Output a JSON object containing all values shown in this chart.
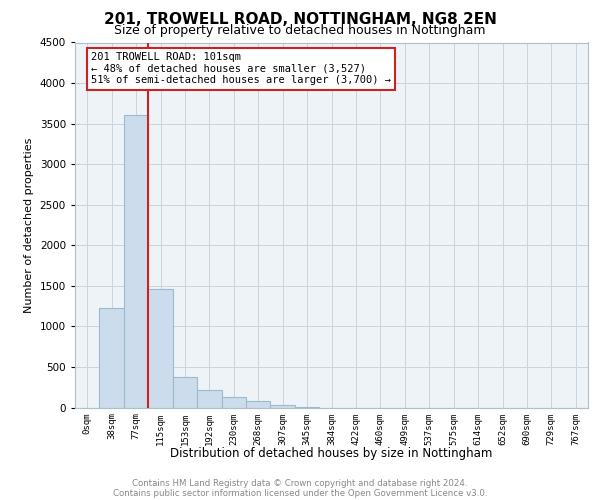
{
  "title_line1": "201, TROWELL ROAD, NOTTINGHAM, NG8 2EN",
  "title_line2": "Size of property relative to detached houses in Nottingham",
  "xlabel": "Distribution of detached houses by size in Nottingham",
  "ylabel": "Number of detached properties",
  "categories": [
    "0sqm",
    "38sqm",
    "77sqm",
    "115sqm",
    "153sqm",
    "192sqm",
    "230sqm",
    "268sqm",
    "307sqm",
    "345sqm",
    "384sqm",
    "422sqm",
    "460sqm",
    "499sqm",
    "537sqm",
    "575sqm",
    "614sqm",
    "652sqm",
    "690sqm",
    "729sqm",
    "767sqm"
  ],
  "values": [
    0,
    1230,
    3600,
    1460,
    380,
    220,
    130,
    80,
    30,
    12,
    0,
    0,
    0,
    0,
    0,
    0,
    0,
    0,
    0,
    0,
    0
  ],
  "bar_color": "#ccdcec",
  "bar_edge_color": "#99bbcc",
  "vline_x": 2.5,
  "vline_color": "#cc2222",
  "annotation_text": "201 TROWELL ROAD: 101sqm\n← 48% of detached houses are smaller (3,527)\n51% of semi-detached houses are larger (3,700) →",
  "annotation_box_edge_color": "#cc2222",
  "ylim": [
    0,
    4500
  ],
  "yticks": [
    0,
    500,
    1000,
    1500,
    2000,
    2500,
    3000,
    3500,
    4000,
    4500
  ],
  "grid_color": "#c8d4e0",
  "footnote_line1": "Contains HM Land Registry data © Crown copyright and database right 2024.",
  "footnote_line2": "Contains public sector information licensed under the Open Government Licence v3.0.",
  "bg_color": "#eef3f8",
  "title1_fontsize": 11,
  "title2_fontsize": 9
}
